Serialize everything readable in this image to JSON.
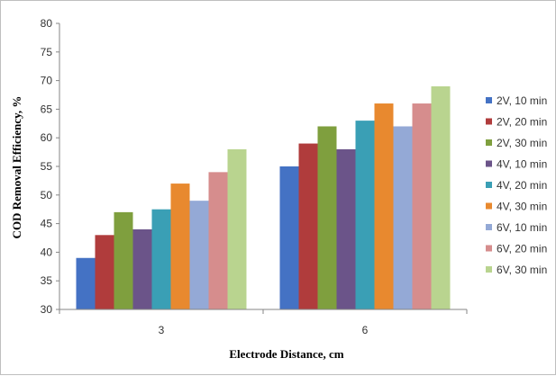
{
  "chart_data": {
    "type": "bar",
    "title": "",
    "xlabel": "Electrode Distance, cm",
    "ylabel": "COD Removal Efficiency, %",
    "categories": [
      "3",
      "6"
    ],
    "ylim": [
      30,
      80
    ],
    "yticks": [
      30,
      35,
      40,
      45,
      50,
      55,
      60,
      65,
      70,
      75,
      80
    ],
    "grid": false,
    "legend_position": "right",
    "series": [
      {
        "name": "2V, 10 min",
        "color": "#4472c4",
        "values": [
          39,
          55
        ]
      },
      {
        "name": "2V, 20 min",
        "color": "#b03c3c",
        "values": [
          43,
          59
        ]
      },
      {
        "name": "2V, 30 min",
        "color": "#7f9f3e",
        "values": [
          47,
          62
        ]
      },
      {
        "name": "4V, 10 min",
        "color": "#6b5489",
        "values": [
          44,
          58
        ]
      },
      {
        "name": "4V, 20 min",
        "color": "#3a9fb5",
        "values": [
          47.5,
          63
        ]
      },
      {
        "name": "4V, 30 min",
        "color": "#e8892f",
        "values": [
          52,
          66
        ]
      },
      {
        "name": "6V, 10 min",
        "color": "#94a9d6",
        "values": [
          49,
          62
        ]
      },
      {
        "name": "6V, 20 min",
        "color": "#d68d8d",
        "values": [
          54,
          66
        ]
      },
      {
        "name": "6V, 30 min",
        "color": "#b9d48f",
        "values": [
          58,
          69
        ]
      }
    ]
  }
}
